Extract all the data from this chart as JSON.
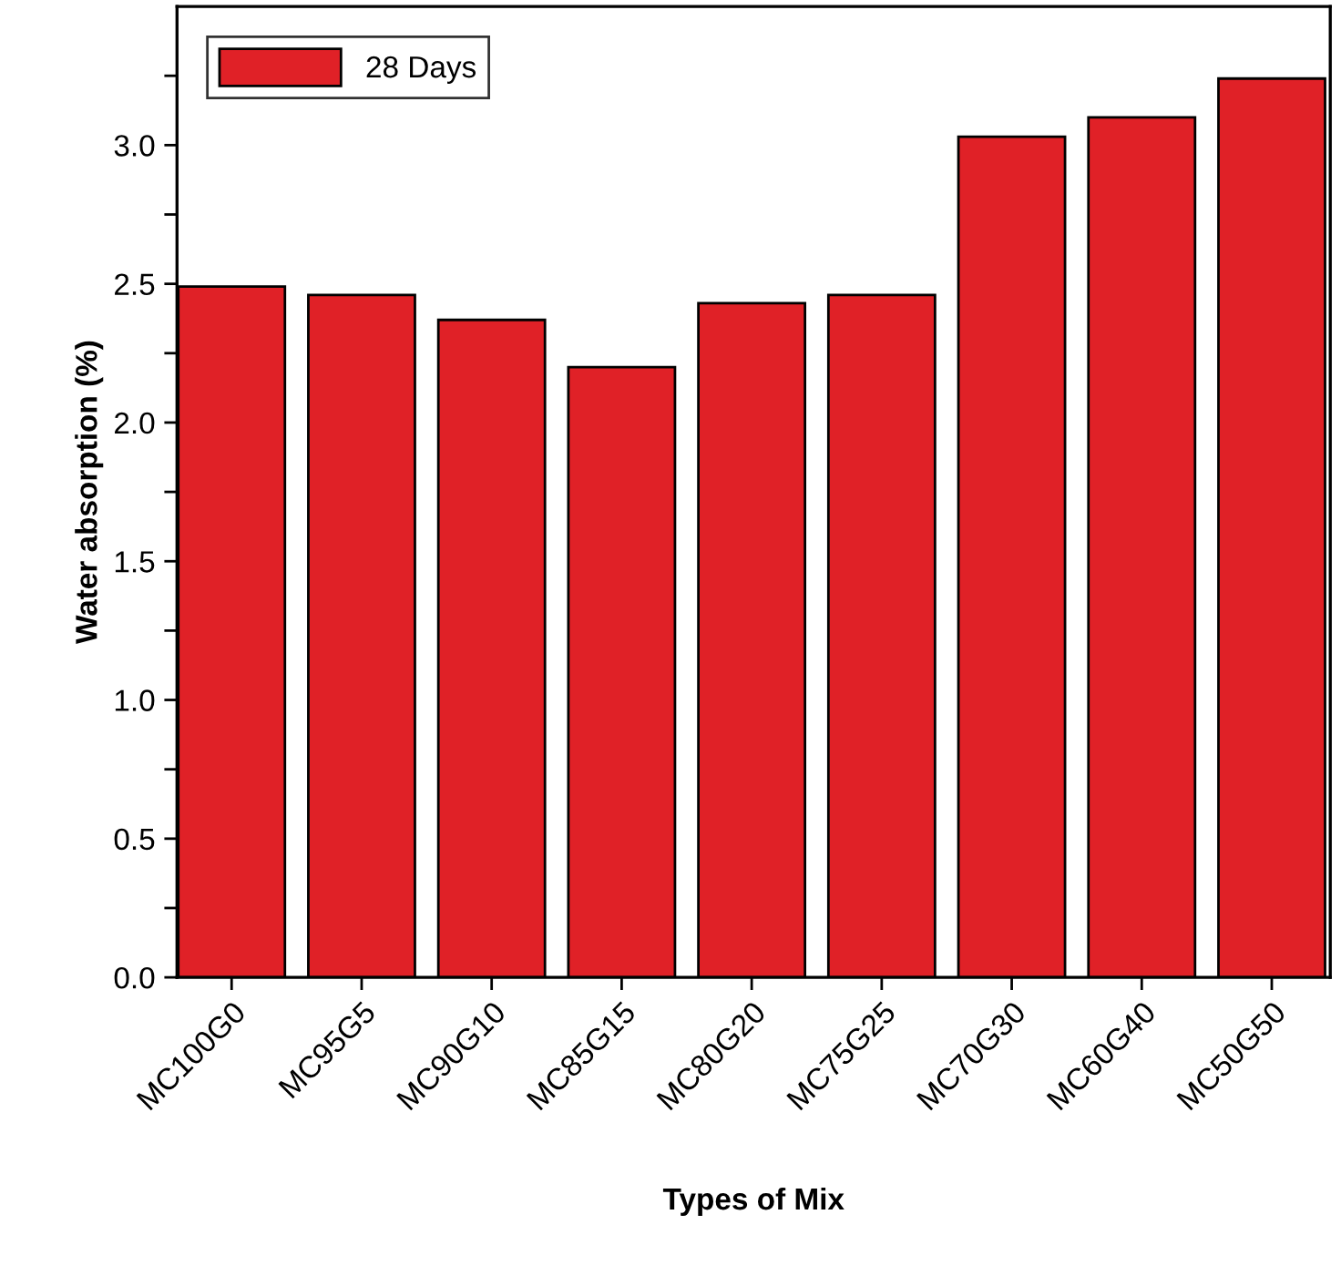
{
  "chart_data": {
    "type": "bar",
    "xlabel": "Types of Mix",
    "ylabel": "Water absorption (%)",
    "categories": [
      "MC100G0",
      "MC95G5",
      "MC90G10",
      "MC85G15",
      "MC80G20",
      "MC75G25",
      "MC70G30",
      "MC60G40",
      "MC50G50"
    ],
    "series": [
      {
        "name": "28 Days",
        "color": "#e02127",
        "values": [
          2.49,
          2.46,
          2.37,
          2.2,
          2.43,
          2.46,
          3.03,
          3.1,
          3.24
        ]
      }
    ],
    "ylim": [
      0,
      3.5
    ],
    "yticks": [
      {
        "value": 0,
        "label": "0.0"
      },
      {
        "value": 0.25,
        "label": null
      },
      {
        "value": 0.5,
        "label": "0.5"
      },
      {
        "value": 0.75,
        "label": null
      },
      {
        "value": 1.0,
        "label": "1.0"
      },
      {
        "value": 1.25,
        "label": null
      },
      {
        "value": 1.5,
        "label": "1.5"
      },
      {
        "value": 1.75,
        "label": null
      },
      {
        "value": 2.0,
        "label": "2.0"
      },
      {
        "value": 2.25,
        "label": null
      },
      {
        "value": 2.5,
        "label": "2.5"
      },
      {
        "value": 2.75,
        "label": null
      },
      {
        "value": 3.0,
        "label": "3.0"
      },
      {
        "value": 3.25,
        "label": null
      }
    ],
    "grid": false,
    "legend": "top left"
  }
}
